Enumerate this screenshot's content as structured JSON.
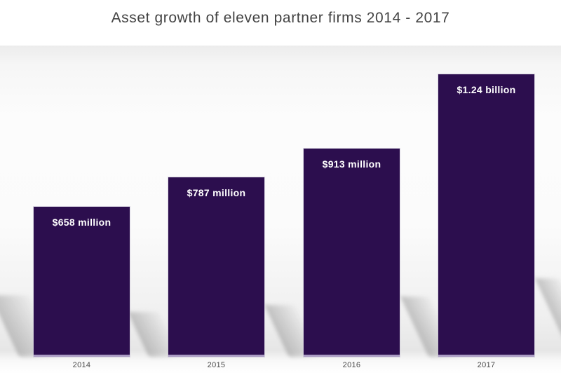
{
  "title": "Asset growth of eleven partner firms 2014 - 2017",
  "chart_data": {
    "type": "bar",
    "title": "Asset growth of eleven partner firms 2014 - 2017",
    "categories": [
      "2014",
      "2015",
      "2016",
      "2017"
    ],
    "values": [
      658,
      787,
      913,
      1240
    ],
    "unit": "USD millions",
    "bar_labels": [
      "$658 million",
      "$787 million",
      "$913 million",
      "$1.24 billion"
    ],
    "xlabel": "",
    "ylabel": "",
    "ylim": [
      0,
      1360
    ],
    "grid": false,
    "legend": "none",
    "bar_color": "#2c0e4e",
    "bar_bottom_edge_color": "#ab9cc4",
    "label_color": "#ffffff",
    "title_color": "#434343",
    "axis_label_color": "#4c4c4c",
    "background_color": "#f2f2f2"
  }
}
